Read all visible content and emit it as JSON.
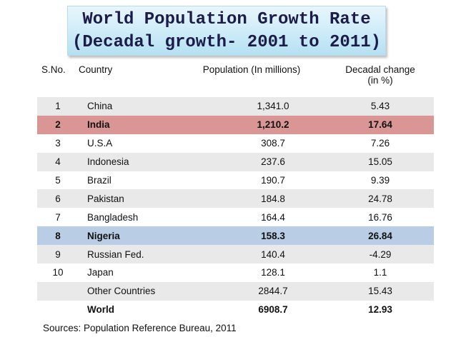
{
  "title": {
    "line1": "World Population Growth Rate",
    "line2": "(Decadal growth- 2001 to 2011)"
  },
  "table": {
    "headers": {
      "no": "S.No.",
      "country": "Country",
      "population": "Population (In millions)",
      "change_line1": "Decadal change",
      "change_line2": "(in %)"
    },
    "rows": [
      {
        "no": "1",
        "country": "China",
        "population": "1,341.0",
        "change": "5.43"
      },
      {
        "no": "2",
        "country": "India",
        "population": "1,210.2",
        "change": "17.64"
      },
      {
        "no": "3",
        "country": "U.S.A",
        "population": "308.7",
        "change": "7.26"
      },
      {
        "no": "4",
        "country": "Indonesia",
        "population": "237.6",
        "change": "15.05"
      },
      {
        "no": "5",
        "country": "Brazil",
        "population": "190.7",
        "change": "9.39"
      },
      {
        "no": "6",
        "country": "Pakistan",
        "population": "184.8",
        "change": "24.78"
      },
      {
        "no": "7",
        "country": "Bangladesh",
        "population": "164.4",
        "change": "16.76"
      },
      {
        "no": "8",
        "country": "Nigeria",
        "population": "158.3",
        "change": "26.84"
      },
      {
        "no": "9",
        "country": "Russian Fed.",
        "population": "140.4",
        "change": "-4.29"
      },
      {
        "no": "10",
        "country": "Japan",
        "population": "128.1",
        "change": "1.1"
      },
      {
        "no": "",
        "country": "Other Countries",
        "population": "2844.7",
        "change": "15.43"
      },
      {
        "no": "",
        "country": "World",
        "population": "6908.7",
        "change": "12.93"
      }
    ]
  },
  "source": "Sources: Population Reference Bureau, 2011",
  "colors": {
    "highlight_india": "#d99694",
    "highlight_nigeria": "#b9cde4",
    "stripe": "#e9e9e9"
  }
}
